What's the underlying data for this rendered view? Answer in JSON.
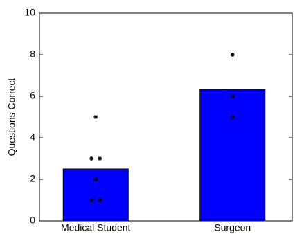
{
  "chart_data": {
    "type": "bar",
    "ylabel": "Questions Correct",
    "categories": [
      "Medical Student",
      "Surgeon"
    ],
    "values": [
      2.5,
      6.33
    ],
    "color": "#0000ff",
    "ylim": [
      0,
      10
    ],
    "yticks": [
      0,
      2,
      4,
      6,
      8,
      10
    ],
    "points": {
      "type": "scatter",
      "color": "#000000",
      "values": [
        [
          5,
          3,
          3,
          2,
          1,
          1
        ],
        [
          8,
          6,
          5
        ]
      ]
    }
  }
}
